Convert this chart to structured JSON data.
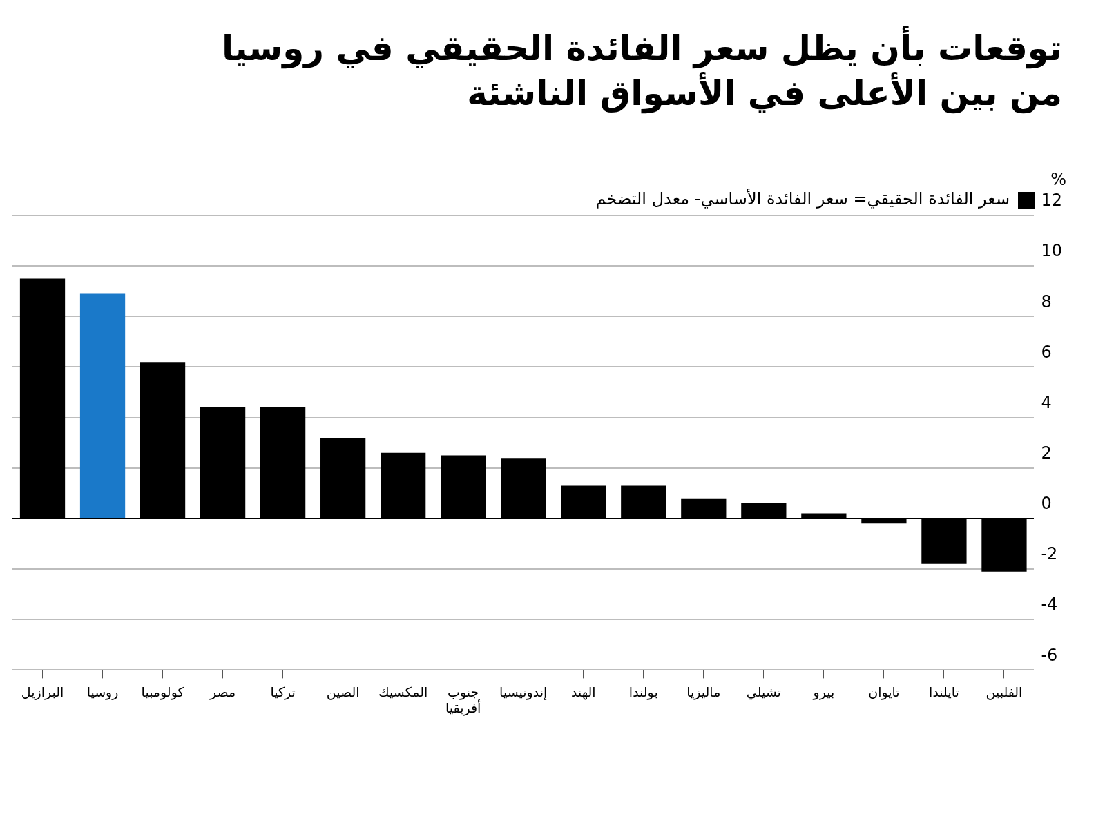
{
  "chart_data": {
    "type": "bar",
    "title": "توقعات بأن يظل سعر الفائدة الحقيقي في روسيا من بين الأعلى في الأسواق الناشئة",
    "ylabel": "%",
    "categories": [
      "البرازيل",
      "روسيا",
      "كولومبيا",
      "مصر",
      "تركيا",
      "الصين",
      "المكسيك",
      "جنوب أفريقيا",
      "إندونيسيا",
      "الهند",
      "بولندا",
      "ماليزيا",
      "تشيلي",
      "بيرو",
      "تايوان",
      "تايلندا",
      "الفلبين"
    ],
    "series": [
      {
        "name": "سعر الفائدة الحقيقي= سعر الفائدة الأساسي- معدل التضخم",
        "color": "#000000",
        "colors": [
          "#000000",
          "#1a79c9",
          "#000000",
          "#000000",
          "#000000",
          "#000000",
          "#000000",
          "#000000",
          "#000000",
          "#000000",
          "#000000",
          "#000000",
          "#000000",
          "#000000",
          "#000000",
          "#000000",
          "#000000"
        ],
        "values": [
          9.5,
          8.9,
          6.2,
          4.4,
          4.4,
          3.2,
          2.6,
          2.5,
          2.4,
          1.3,
          1.3,
          0.8,
          0.6,
          0.2,
          -0.2,
          -1.8,
          -2.1
        ]
      }
    ],
    "ylim": [
      -6,
      12
    ],
    "yticks": [
      -6,
      -4,
      -2,
      0,
      2,
      4,
      6,
      8,
      10,
      12
    ],
    "grid": "y",
    "legend": "top right"
  }
}
